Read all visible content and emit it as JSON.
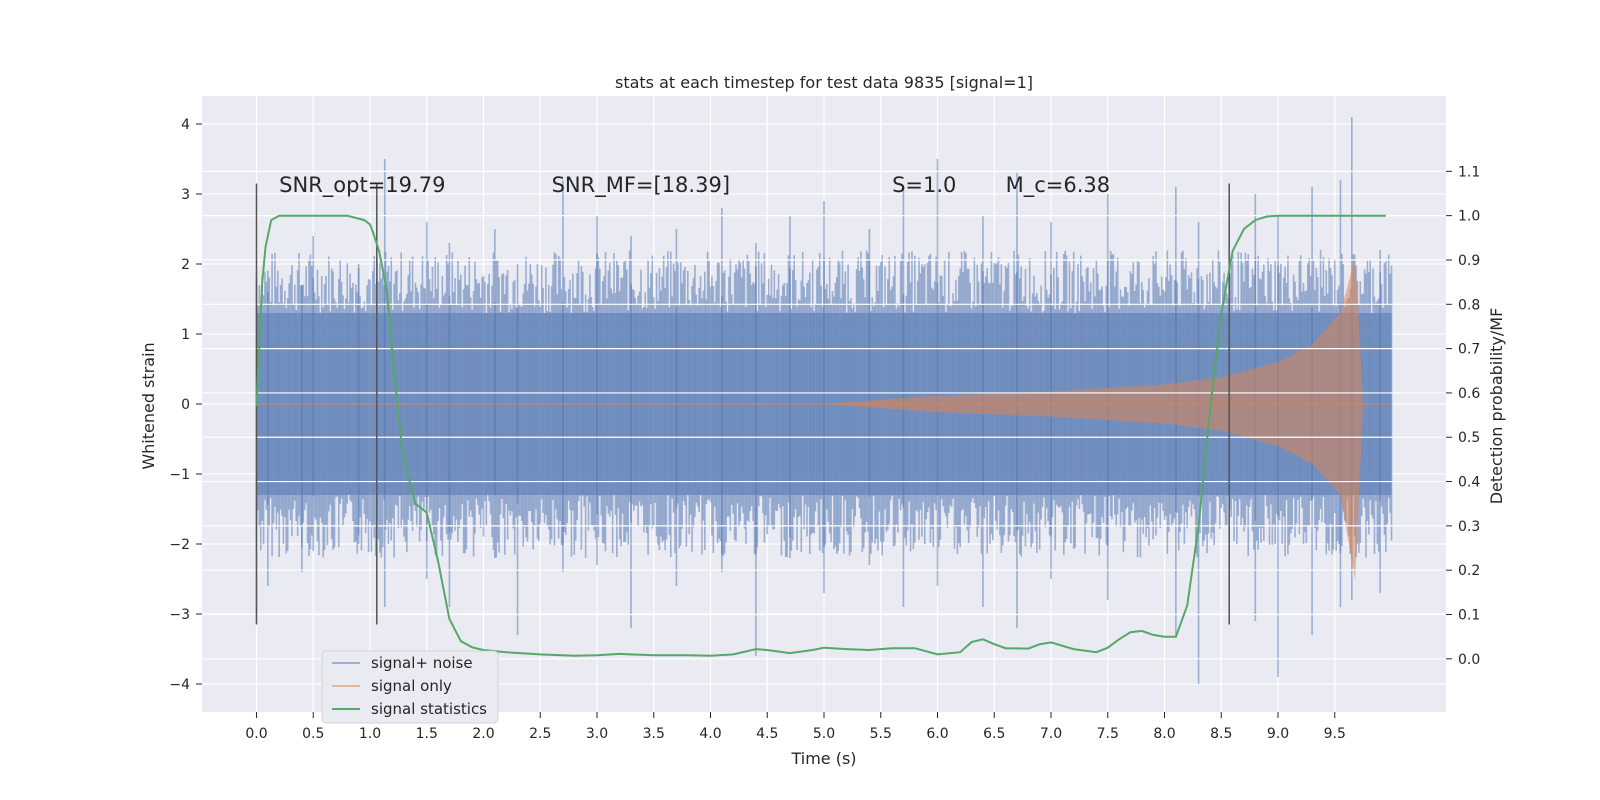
{
  "chart_data": {
    "type": "line",
    "title": "stats at each timestep for test data 9835 [signal=1]",
    "xlabel": "Time (s)",
    "ylabel": "Whitened strain",
    "y2label": "Detection probability/MF",
    "xlim": [
      -0.48,
      10.48
    ],
    "ylim": [
      -4.4,
      4.4
    ],
    "y2lim": [
      -0.12,
      1.27
    ],
    "x_ticks": [
      0.0,
      0.5,
      1.0,
      1.5,
      2.0,
      2.5,
      3.0,
      3.5,
      4.0,
      4.5,
      5.0,
      5.5,
      6.0,
      6.5,
      7.0,
      7.5,
      8.0,
      8.5,
      9.0,
      9.5
    ],
    "x_tick_labels": [
      "0.0",
      "0.5",
      "1.0",
      "1.5",
      "2.0",
      "2.5",
      "3.0",
      "3.5",
      "4.0",
      "4.5",
      "5.0",
      "5.5",
      "6.0",
      "6.5",
      "7.0",
      "7.5",
      "8.0",
      "8.5",
      "9.0",
      "9.5"
    ],
    "y_ticks": [
      4,
      3,
      2,
      1,
      0,
      -1,
      -2,
      -3,
      -4
    ],
    "y_tick_labels": [
      "4",
      "3",
      "2",
      "1",
      "0",
      "−1",
      "−2",
      "−3",
      "−4"
    ],
    "y2_ticks": [
      1.1,
      1.0,
      0.9,
      0.8,
      0.7,
      0.6,
      0.5,
      0.4,
      0.3,
      0.2,
      0.1,
      0.0
    ],
    "y2_tick_labels": [
      "1.1",
      "1.0",
      "0.9",
      "0.8",
      "0.7",
      "0.6",
      "0.5",
      "0.4",
      "0.3",
      "0.2",
      "0.1",
      "0.0"
    ],
    "grid": true,
    "legend_position": "lower-left",
    "annotations": [
      {
        "text": "SNR_opt=19.79",
        "x": 0.2,
        "y": 3.2
      },
      {
        "text": "SNR_MF=[18.39]",
        "x": 2.6,
        "y": 3.2
      },
      {
        "text": "S=1.0",
        "x": 5.6,
        "y": 3.2
      },
      {
        "text": "M_c=6.38",
        "x": 6.6,
        "y": 3.2
      }
    ],
    "vlines": [
      0.0,
      1.06,
      8.57
    ],
    "vline_range": [
      -3.15,
      3.15
    ],
    "series": [
      {
        "name": "signal+ noise",
        "color": "#4c72b0",
        "description_values": "noise envelope approx +/-1.3, peaks +/-2.5 to +/-4",
        "envelope": 1.3,
        "spikes": [
          [
            0.0,
            1.9,
            -3.1
          ],
          [
            0.1,
            1.6,
            -2.6
          ],
          [
            0.4,
            1.7,
            -2.4
          ],
          [
            0.5,
            2.4,
            -2.1
          ],
          [
            0.9,
            2.0,
            -2.0
          ],
          [
            1.13,
            3.5,
            -2.9
          ],
          [
            1.5,
            2.6,
            -2.5
          ],
          [
            1.7,
            2.3,
            -2.9
          ],
          [
            2.1,
            2.5,
            -2.2
          ],
          [
            2.3,
            2.0,
            -3.3
          ],
          [
            2.7,
            3.2,
            -2.4
          ],
          [
            3.0,
            2.7,
            -2.3
          ],
          [
            3.3,
            2.4,
            -3.2
          ],
          [
            3.7,
            2.5,
            -2.6
          ],
          [
            4.1,
            2.8,
            -2.4
          ],
          [
            4.4,
            2.3,
            -3.6
          ],
          [
            4.7,
            2.7,
            -2.2
          ],
          [
            5.0,
            2.9,
            -2.7
          ],
          [
            5.4,
            2.5,
            -2.3
          ],
          [
            5.7,
            3.1,
            -2.9
          ],
          [
            6.0,
            3.5,
            -2.6
          ],
          [
            6.4,
            2.7,
            -2.9
          ],
          [
            6.7,
            3.3,
            -3.2
          ],
          [
            7.0,
            2.6,
            -2.5
          ],
          [
            7.5,
            3.0,
            -2.8
          ],
          [
            8.1,
            3.1,
            -3.3
          ],
          [
            8.3,
            2.6,
            -4.0
          ],
          [
            8.8,
            3.0,
            -3.1
          ],
          [
            9.0,
            2.7,
            -3.9
          ],
          [
            9.3,
            3.1,
            -3.3
          ],
          [
            9.55,
            3.2,
            -2.9
          ],
          [
            9.65,
            4.1,
            -2.8
          ],
          [
            9.9,
            2.2,
            -2.7
          ]
        ]
      },
      {
        "name": "signal only",
        "color": "#dd8452",
        "envelope_points": [
          [
            5.0,
            0.0
          ],
          [
            6.0,
            0.12
          ],
          [
            7.0,
            0.18
          ],
          [
            8.0,
            0.28
          ],
          [
            8.5,
            0.38
          ],
          [
            9.0,
            0.6
          ],
          [
            9.3,
            0.85
          ],
          [
            9.55,
            1.3
          ],
          [
            9.68,
            2.1
          ],
          [
            9.75,
            0.0
          ]
        ]
      },
      {
        "name": "signal statistics",
        "color": "#55a868",
        "axis": "right",
        "x": [
          0.0,
          0.05,
          0.08,
          0.13,
          0.2,
          0.3,
          0.5,
          0.8,
          0.95,
          1.0,
          1.03,
          1.08,
          1.15,
          1.2,
          1.28,
          1.35,
          1.4,
          1.5,
          1.6,
          1.7,
          1.8,
          1.9,
          2.0,
          2.2,
          2.5,
          2.8,
          3.0,
          3.2,
          3.5,
          3.8,
          4.0,
          4.2,
          4.4,
          4.5,
          4.7,
          4.9,
          5.0,
          5.2,
          5.4,
          5.6,
          5.8,
          6.0,
          6.2,
          6.3,
          6.4,
          6.5,
          6.6,
          6.8,
          6.9,
          7.0,
          7.2,
          7.4,
          7.5,
          7.6,
          7.7,
          7.8,
          7.9,
          8.0,
          8.1,
          8.2,
          8.3,
          8.4,
          8.5,
          8.6,
          8.7,
          8.8,
          8.9,
          9.0,
          9.2,
          9.5,
          9.95
        ],
        "values": [
          0.57,
          0.85,
          0.93,
          0.99,
          1.0,
          1.0,
          1.0,
          1.0,
          0.99,
          0.98,
          0.96,
          0.92,
          0.83,
          0.68,
          0.48,
          0.4,
          0.35,
          0.33,
          0.22,
          0.09,
          0.04,
          0.026,
          0.02,
          0.015,
          0.01,
          0.007,
          0.008,
          0.011,
          0.008,
          0.008,
          0.007,
          0.01,
          0.022,
          0.02,
          0.013,
          0.02,
          0.025,
          0.022,
          0.02,
          0.024,
          0.024,
          0.01,
          0.015,
          0.038,
          0.044,
          0.033,
          0.024,
          0.023,
          0.033,
          0.037,
          0.022,
          0.015,
          0.025,
          0.044,
          0.06,
          0.063,
          0.054,
          0.05,
          0.05,
          0.12,
          0.3,
          0.56,
          0.78,
          0.92,
          0.97,
          0.99,
          0.998,
          1.0,
          1.0,
          1.0,
          1.0
        ]
      }
    ]
  }
}
